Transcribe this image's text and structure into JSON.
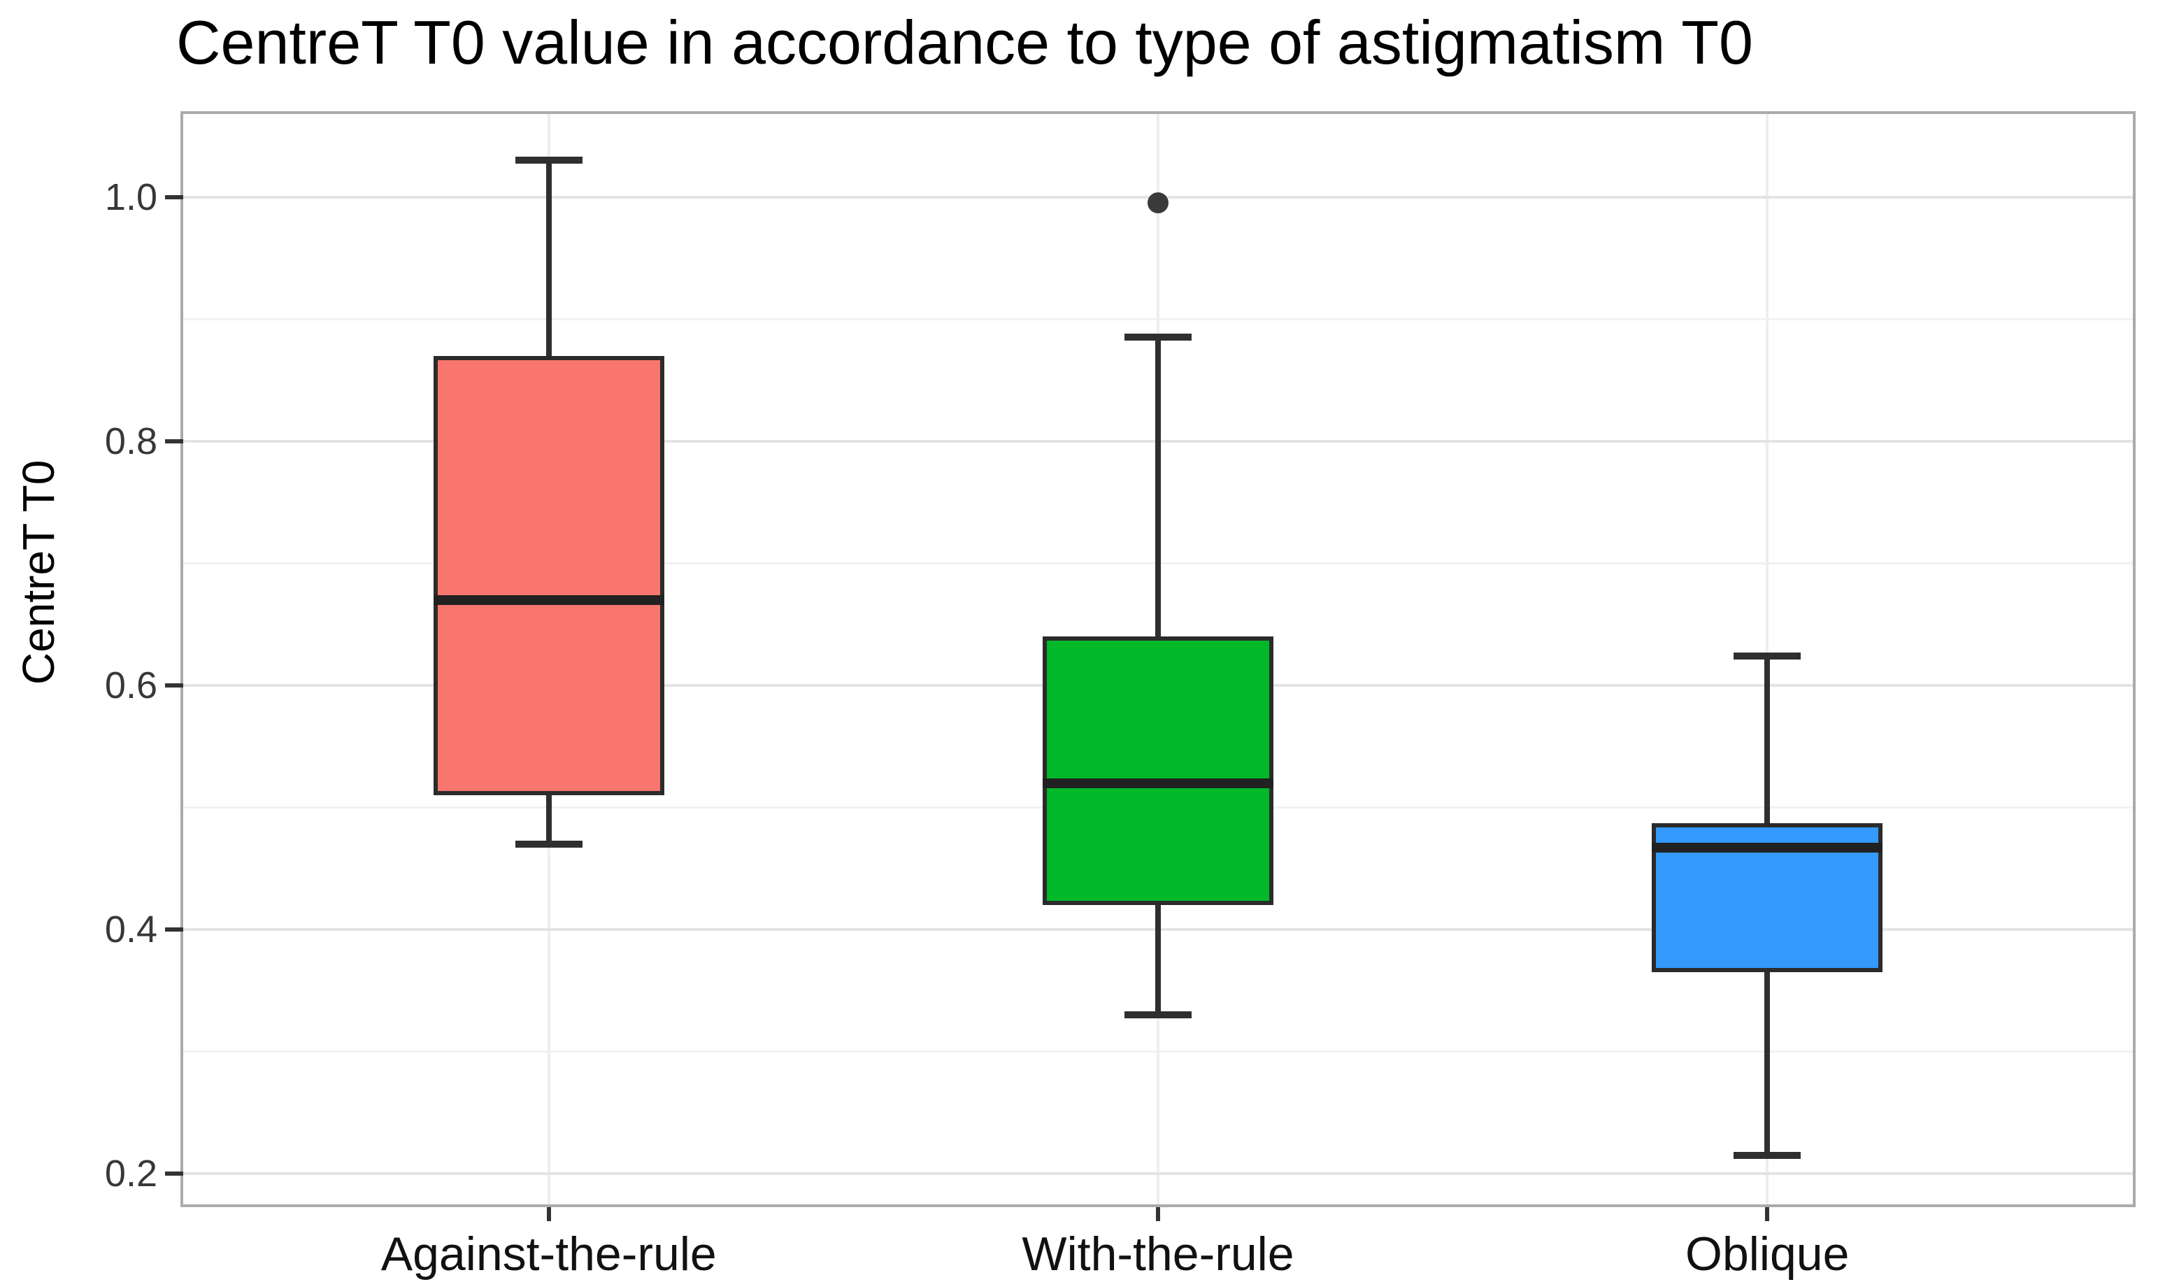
{
  "chart_data": {
    "type": "boxplot",
    "title": "CentreT T0 value in accordance to type of astigmatism T0",
    "xlabel": "",
    "ylabel": "CentreT T0",
    "ylim": [
      0.175,
      1.068
    ],
    "yticks_major": [
      1.0,
      0.8,
      0.6,
      0.4,
      0.2
    ],
    "ytick_labels": [
      "1.0",
      "0.8",
      "0.6",
      "0.4",
      "0.2"
    ],
    "yticks_minor": [
      0.9,
      0.7,
      0.5,
      0.3
    ],
    "grid": "horizontal major+minor gridlines on, vertical gridline at each category, legend none",
    "categories": [
      "Against-the-rule",
      "With-the-rule",
      "Oblique"
    ],
    "series": [
      {
        "name": "Against-the-rule",
        "color": "#F8766D",
        "whisker_low": 0.47,
        "q1": 0.51,
        "median": 0.67,
        "q3": 0.87,
        "whisker_high": 1.03,
        "outliers": []
      },
      {
        "name": "With-the-rule",
        "color": "#00B828",
        "whisker_low": 0.33,
        "q1": 0.42,
        "median": 0.52,
        "q3": 0.64,
        "whisker_high": 0.885,
        "outliers": [
          0.995
        ]
      },
      {
        "name": "Oblique",
        "color": "#3399FA",
        "whisker_low": 0.215,
        "q1": 0.365,
        "median": 0.467,
        "q3": 0.487,
        "whisker_high": 0.624,
        "outliers": []
      }
    ],
    "style": {
      "panel_border": "#ABABAB",
      "grid_major": "#E4E4E4",
      "grid_minor": "#F1F1F1",
      "grid_vertical": "#EEEEEE",
      "box_outline": "#2B2B2B",
      "median_color": "#212121",
      "axis_text": "#383838",
      "title_color": "#000000"
    }
  }
}
